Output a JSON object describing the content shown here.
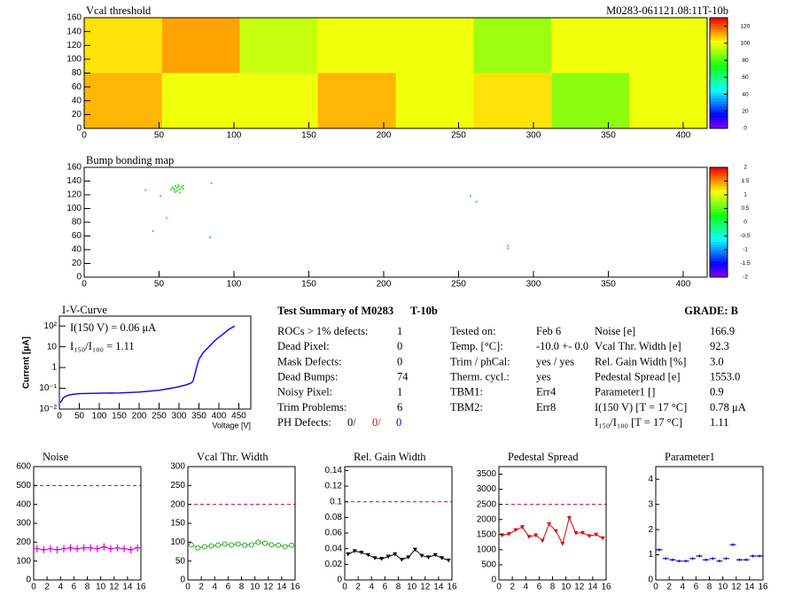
{
  "chart_data": [
    {
      "type": "heatmap",
      "title": "Vcal threshold",
      "subtitle": "M0283-061121.08:11T-10b",
      "x_edges": [
        0,
        52,
        104,
        156,
        208,
        260,
        312,
        364,
        416
      ],
      "y_edges": [
        0,
        80,
        160
      ],
      "z": [
        [
          110,
          100,
          100,
          110,
          100,
          105,
          88,
          100
        ],
        [
          105,
          112,
          95,
          100,
          100,
          90,
          100,
          100
        ]
      ],
      "xlim": [
        0,
        416
      ],
      "xticks": [
        0,
        50,
        100,
        150,
        200,
        250,
        300,
        350,
        400
      ],
      "ylim": [
        0,
        160
      ],
      "yticks": [
        0,
        20,
        40,
        60,
        80,
        100,
        120,
        140,
        160
      ],
      "zlim": [
        0,
        130
      ],
      "zticks": [
        0,
        20,
        40,
        60,
        80,
        100,
        120
      ]
    },
    {
      "type": "scatter",
      "title": "Bump bonding map",
      "color": "#33e833",
      "x": [
        59,
        60,
        61,
        62,
        63,
        64,
        65,
        66,
        60,
        62,
        66,
        58,
        63,
        61,
        64,
        41,
        51,
        55,
        46,
        84,
        85,
        258,
        262,
        283,
        283
      ],
      "y": [
        131,
        129,
        133,
        130,
        132,
        128,
        131,
        129,
        127,
        126,
        133,
        128,
        134,
        124,
        123,
        127,
        118,
        86,
        67,
        58,
        137,
        118,
        110,
        46,
        42
      ],
      "xlim": [
        0,
        416
      ],
      "xticks": [
        0,
        50,
        100,
        150,
        200,
        250,
        300,
        350,
        400
      ],
      "ylim": [
        0,
        160
      ],
      "yticks": [
        0,
        20,
        40,
        60,
        80,
        100,
        120,
        140,
        160
      ],
      "zlim": [
        -2,
        2
      ],
      "zticks": [
        -2,
        -1.5,
        -1,
        -0.5,
        0,
        0.5,
        1,
        1.5,
        2
      ]
    },
    {
      "type": "line",
      "title": "I-V-Curve",
      "xlabel": "Voltage [V]",
      "ylabel": "Current [μA]",
      "log_y": true,
      "color": "#0000ff",
      "x": [
        3,
        10,
        20,
        30,
        50,
        100,
        150,
        200,
        250,
        280,
        300,
        320,
        330,
        335,
        340,
        345,
        350,
        360,
        375,
        390,
        410,
        425,
        440
      ],
      "values": [
        0.02,
        0.035,
        0.045,
        0.05,
        0.055,
        0.058,
        0.06,
        0.066,
        0.08,
        0.1,
        0.12,
        0.15,
        0.18,
        0.22,
        0.5,
        1.2,
        2.5,
        5,
        10,
        20,
        40,
        70,
        100
      ],
      "xlim": [
        0,
        480
      ],
      "xticks": [
        0,
        50,
        100,
        150,
        200,
        250,
        300,
        350,
        400,
        450
      ],
      "ylim": [
        0.01,
        300
      ],
      "yticks": [
        {
          "value": 0.01,
          "label": "10⁻²"
        },
        {
          "value": 0.1,
          "label": "10⁻¹"
        },
        1,
        10,
        {
          "value": 100,
          "label": "10²"
        }
      ],
      "annotations": [
        "I(150 V) = 0.06 μA",
        "I₁₅₀/I₁₀₀ =  1.11"
      ]
    },
    {
      "type": "line",
      "title": "Noise",
      "color": "#dd00dd",
      "marker": "cross",
      "threshold": 500,
      "x": [
        0.5,
        1.5,
        2.5,
        3.5,
        4.5,
        5.5,
        6.5,
        7.5,
        8.5,
        9.5,
        10.5,
        11.5,
        12.5,
        13.5,
        14.5,
        15.5
      ],
      "values": [
        165,
        160,
        165,
        160,
        165,
        170,
        165,
        170,
        170,
        165,
        175,
        165,
        170,
        165,
        160,
        170
      ],
      "xlim": [
        0,
        16
      ],
      "xticks": [
        0,
        2,
        4,
        6,
        8,
        10,
        12,
        14,
        16
      ],
      "ylim": [
        0,
        600
      ],
      "yticks": [
        0,
        100,
        200,
        300,
        400,
        500,
        600
      ]
    },
    {
      "type": "line",
      "title": "Vcal Thr. Width",
      "color": "#22aa22",
      "marker": "circle",
      "threshold": 200,
      "x": [
        0.5,
        1.5,
        2.5,
        3.5,
        4.5,
        5.5,
        6.5,
        7.5,
        8.5,
        9.5,
        10.5,
        11.5,
        12.5,
        13.5,
        14.5,
        15.5
      ],
      "values": [
        93,
        85,
        88,
        90,
        92,
        95,
        93,
        95,
        92,
        93,
        100,
        97,
        93,
        92,
        88,
        92
      ],
      "xlim": [
        0,
        16
      ],
      "xticks": [
        0,
        2,
        4,
        6,
        8,
        10,
        12,
        14,
        16
      ],
      "ylim": [
        0,
        300
      ],
      "yticks": [
        0,
        50,
        100,
        150,
        200,
        250,
        300
      ]
    },
    {
      "type": "line",
      "title": "Rel. Gain Width",
      "color": "#000000",
      "marker": "triangle",
      "threshold": 0.1,
      "x": [
        0.5,
        1.5,
        2.5,
        3.5,
        4.5,
        5.5,
        6.5,
        7.5,
        8.5,
        9.5,
        10.5,
        11.5,
        12.5,
        13.5,
        14.5,
        15.5
      ],
      "values": [
        0.033,
        0.037,
        0.035,
        0.032,
        0.028,
        0.027,
        0.03,
        0.033,
        0.026,
        0.029,
        0.039,
        0.031,
        0.029,
        0.032,
        0.028,
        0.025
      ],
      "xlim": [
        0,
        16
      ],
      "xticks": [
        0,
        2,
        4,
        6,
        8,
        10,
        12,
        14,
        16
      ],
      "ylim": [
        0,
        0.145
      ],
      "yticks": [
        0,
        0.02,
        0.04,
        0.06,
        0.08,
        0.1,
        0.12,
        0.14
      ]
    },
    {
      "type": "line",
      "title": "Pedestal Spread",
      "color": "#dd0000",
      "marker": "triangle",
      "threshold": 2500,
      "x": [
        0.5,
        1.5,
        2.5,
        3.5,
        4.5,
        5.5,
        6.5,
        7.5,
        8.5,
        9.5,
        10.5,
        11.5,
        12.5,
        13.5,
        14.5,
        15.5
      ],
      "values": [
        1480,
        1520,
        1650,
        1750,
        1430,
        1480,
        1300,
        1850,
        1620,
        1200,
        2050,
        1550,
        1560,
        1450,
        1500,
        1380
      ],
      "xlim": [
        0,
        16
      ],
      "xticks": [
        0,
        2,
        4,
        6,
        8,
        10,
        12,
        14,
        16
      ],
      "ylim": [
        0,
        3750
      ],
      "yticks": [
        0,
        500,
        1000,
        1500,
        2000,
        2500,
        3000,
        3500
      ]
    },
    {
      "type": "line",
      "title": "Parameter1",
      "color": "#0000cc",
      "marker": "bar",
      "x": [
        0.5,
        1.5,
        2.5,
        3.5,
        4.5,
        5.5,
        6.5,
        7.5,
        8.5,
        9.5,
        10.5,
        11.5,
        12.5,
        13.5,
        14.5,
        15.5
      ],
      "values": [
        1.2,
        0.85,
        0.8,
        0.75,
        0.75,
        0.85,
        0.95,
        0.8,
        0.85,
        0.75,
        0.85,
        1.4,
        0.8,
        0.8,
        0.95,
        0.95
      ],
      "xlim": [
        0,
        16
      ],
      "xticks": [
        0,
        2,
        4,
        6,
        8,
        10,
        12,
        14,
        16
      ],
      "ylim": [
        0,
        4.5
      ],
      "yticks": [
        0,
        1,
        2,
        3,
        4
      ]
    }
  ],
  "summary": {
    "title": "Test Summary of M0283",
    "module_type": "T-10b",
    "grade": "GRADE:  B",
    "col1": [
      [
        "ROCs > 1% defects:",
        "1"
      ],
      [
        "Dead Pixel:",
        "0"
      ],
      [
        "Mask Defects:",
        "0"
      ],
      [
        "Dead Bumps:",
        "74"
      ],
      [
        "Noisy Pixel:",
        "1"
      ],
      [
        "Trim Problems:",
        "6"
      ]
    ],
    "ph_defects": {
      "label": "PH Defects:",
      "values": [
        "0/",
        "0/",
        "0"
      ]
    },
    "col2": [
      [
        "Tested on:",
        "Feb 6"
      ],
      [
        "Temp. [°C]:",
        "-10.0 +- 0.0"
      ],
      [
        "Trim / phCal:",
        "yes / yes"
      ],
      [
        "Therm. cycl.:",
        "yes"
      ],
      [
        "TBM1:",
        "Err4"
      ],
      [
        "TBM2:",
        "Err8"
      ]
    ],
    "col3": [
      [
        "Noise [e]",
        "166.9"
      ],
      [
        "Vcal Thr. Width [e]",
        "92.3"
      ],
      [
        "Rel. Gain Width [%]",
        "3.0"
      ],
      [
        "Pedestal Spread [e]",
        "1553.0"
      ],
      [
        "Parameter1 []",
        "0.9"
      ],
      [
        "I(150 V) [T = 17 °C]",
        "0.78 μA"
      ],
      [
        "I₁₅₀/I₁₀₀  [T = 17 °C]",
        "1.11"
      ]
    ]
  }
}
